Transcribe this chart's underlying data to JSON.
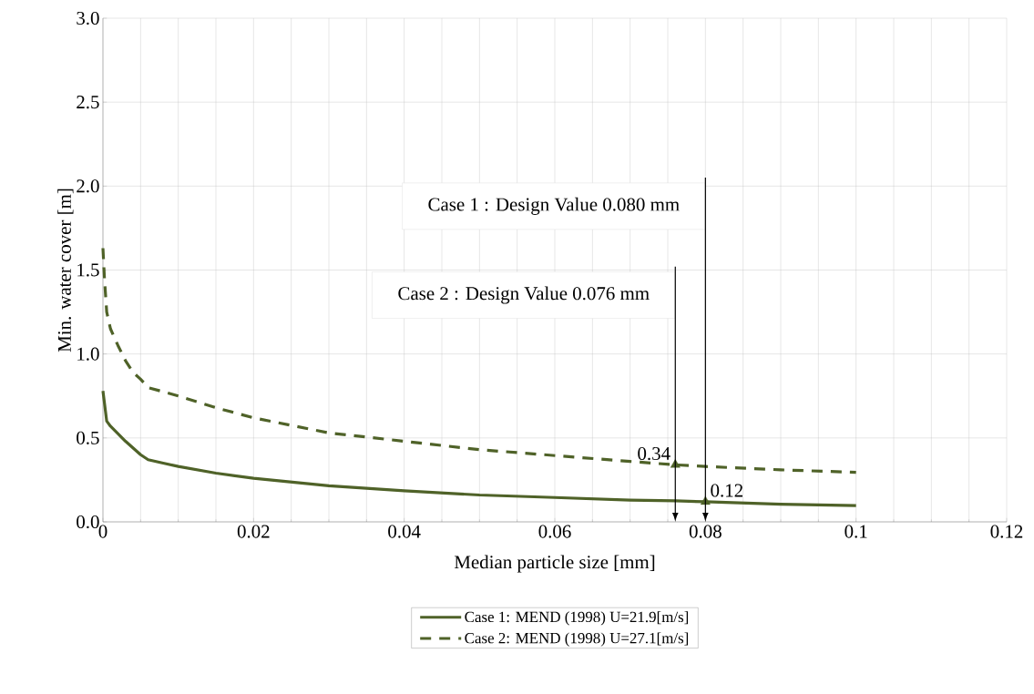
{
  "chart_data": {
    "type": "line",
    "xlabel": "Median particle size [mm]",
    "ylabel": "Min. water cover [m]",
    "xlim": [
      0,
      0.12
    ],
    "ylim": [
      0,
      3.0
    ],
    "xticks": [
      {
        "value": 0,
        "label": "0"
      },
      0.02,
      0.04,
      0.06,
      0.08,
      {
        "value": 0.1,
        "label": "0.1"
      },
      0.12
    ],
    "yticks": [
      {
        "value": 0,
        "label": "0.0"
      },
      0.5,
      {
        "value": 1,
        "label": "1.0"
      },
      1.5,
      {
        "value": 2,
        "label": "2.0"
      },
      2.5,
      {
        "value": 3,
        "label": "3.0"
      }
    ],
    "grid": true,
    "legend": "bottom",
    "series": [
      {
        "name": "Case 1: MEND (1998) U=21.9[m/s]",
        "color": "#4f6228",
        "line_style": "solid",
        "x": [
          0,
          0.0005,
          0.001,
          0.003,
          0.005,
          0.006,
          0.008,
          0.01,
          0.015,
          0.02,
          0.03,
          0.04,
          0.05,
          0.06,
          0.07,
          0.076,
          0.08,
          0.09,
          0.1
        ],
        "values": [
          0.78,
          0.6,
          0.57,
          0.48,
          0.4,
          0.37,
          0.35,
          0.33,
          0.29,
          0.26,
          0.215,
          0.185,
          0.16,
          0.145,
          0.13,
          0.125,
          0.12,
          0.105,
          0.097
        ]
      },
      {
        "name": "Case 2: MEND (1998) U=27.1[m/s]",
        "color": "#4f6228",
        "line_style": "dashed",
        "x": [
          0,
          0.0002,
          0.0005,
          0.001,
          0.002,
          0.003,
          0.004,
          0.005,
          0.006,
          0.01,
          0.015,
          0.02,
          0.03,
          0.04,
          0.05,
          0.06,
          0.07,
          0.076,
          0.08,
          0.09,
          0.1
        ],
        "values": [
          1.63,
          1.45,
          1.25,
          1.15,
          1.05,
          0.96,
          0.89,
          0.85,
          0.8,
          0.75,
          0.68,
          0.62,
          0.53,
          0.48,
          0.43,
          0.395,
          0.36,
          0.34,
          0.33,
          0.31,
          0.295
        ]
      },
      {
        "type": "scatter",
        "color": "#4f6228",
        "marker": "triangle",
        "x": [
          0.076,
          0.08
        ],
        "values": [
          0.34,
          0.12
        ],
        "value_labels": [
          "0.34",
          "0.12"
        ]
      }
    ],
    "ref_lines": [
      {
        "axis": "x",
        "value": 0.08,
        "label": "Case 1 : Design Value 0.080 mm",
        "color": "#000000"
      },
      {
        "axis": "x",
        "value": 0.076,
        "label": "Case 2 : Design Value 0.076 mm",
        "color": "#000000"
      }
    ]
  }
}
